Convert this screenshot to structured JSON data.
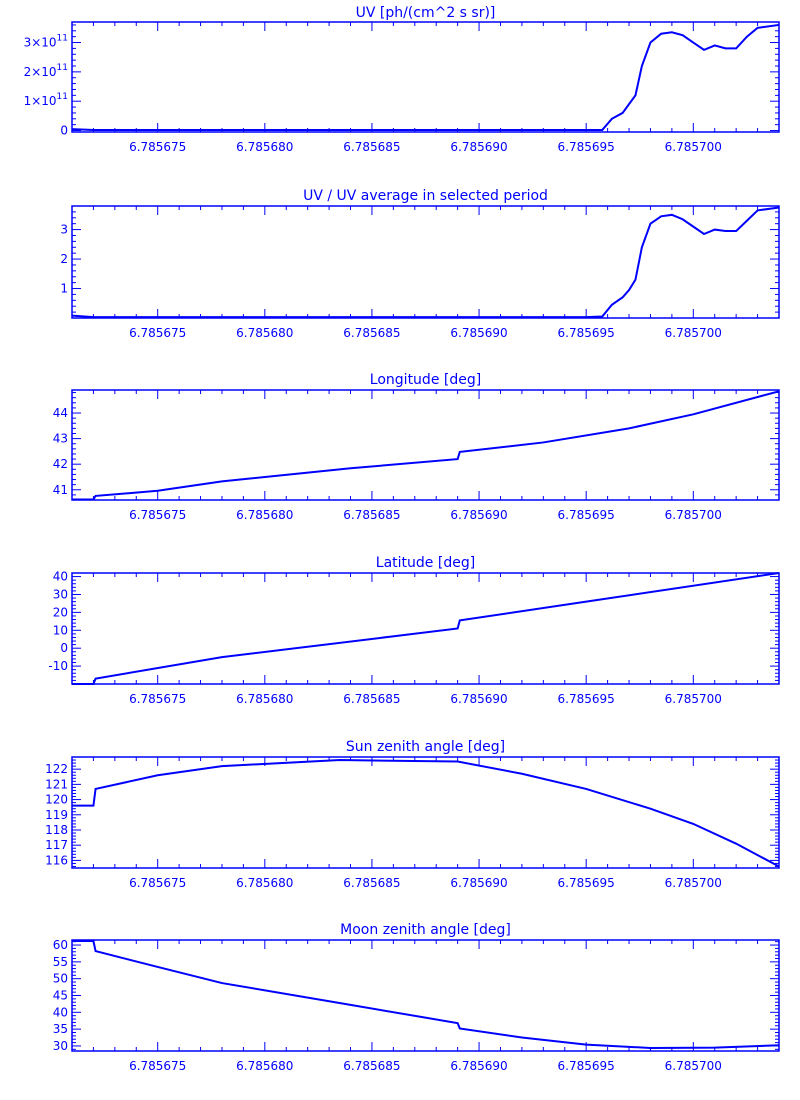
{
  "chart_data": [
    {
      "type": "line",
      "title": "UV [ph/(cm^2 s sr)]",
      "xlim": [
        6.785671,
        6.785704
      ],
      "ylim": [
        -5000000000.0,
        370000000000.0
      ],
      "xticks": [
        6.785675,
        6.78568,
        6.785685,
        6.78569,
        6.785695,
        6.7857
      ],
      "xtick_labels": [
        "6.785675",
        "6.785680",
        "6.785685",
        "6.785690",
        "6.785695",
        "6.785700"
      ],
      "yticks": [
        0,
        100000000000.0,
        200000000000.0,
        300000000000.0
      ],
      "ytick_labels": [
        {
          "base": "0",
          "exp": ""
        },
        {
          "base": "1×10",
          "exp": "11"
        },
        {
          "base": "2×10",
          "exp": "11"
        },
        {
          "base": "3×10",
          "exp": "11"
        }
      ],
      "series": [
        {
          "x": [
            6.785671,
            6.785672,
            6.785695,
            6.78569575,
            6.7856962,
            6.7856967,
            6.785697,
            6.7856973,
            6.7856976,
            6.785698,
            6.7856985,
            6.785699,
            6.7856995,
            6.7857,
            6.7857005,
            6.785701,
            6.7857015,
            6.785702,
            6.7857025,
            6.785703,
            6.785704
          ],
          "y": [
            5000000000.0,
            2000000000.0,
            2000000000.0,
            2000000000.0,
            40000000000.0,
            60000000000.0,
            90000000000.0,
            120000000000.0,
            220000000000.0,
            300000000000.0,
            330000000000.0,
            335000000000.0,
            325000000000.0,
            300000000000.0,
            275000000000.0,
            290000000000.0,
            280000000000.0,
            280000000000.0,
            320000000000.0,
            350000000000.0,
            360000000000.0
          ]
        }
      ]
    },
    {
      "type": "line",
      "title": "UV / UV average in selected period",
      "xlim": [
        6.785671,
        6.785704
      ],
      "ylim": [
        0,
        3.8
      ],
      "xticks": [
        6.785675,
        6.78568,
        6.785685,
        6.78569,
        6.785695,
        6.7857
      ],
      "xtick_labels": [
        "6.785675",
        "6.785680",
        "6.785685",
        "6.785690",
        "6.785695",
        "6.785700"
      ],
      "yticks": [
        1,
        2,
        3
      ],
      "ytick_labels": [
        {
          "base": "1",
          "exp": ""
        },
        {
          "base": "2",
          "exp": ""
        },
        {
          "base": "3",
          "exp": ""
        }
      ],
      "series": [
        {
          "x": [
            6.785671,
            6.785672,
            6.785695,
            6.78569575,
            6.7856962,
            6.7856967,
            6.785697,
            6.7856973,
            6.7856976,
            6.785698,
            6.7856985,
            6.785699,
            6.7856995,
            6.7857,
            6.7857005,
            6.785701,
            6.7857015,
            6.785702,
            6.7857025,
            6.785703,
            6.785704
          ],
          "y": [
            0.08,
            0.03,
            0.03,
            0.05,
            0.45,
            0.7,
            0.95,
            1.3,
            2.4,
            3.2,
            3.45,
            3.5,
            3.35,
            3.1,
            2.85,
            3.0,
            2.95,
            2.95,
            3.3,
            3.65,
            3.75
          ]
        }
      ]
    },
    {
      "type": "line",
      "title": "Longitude [deg]",
      "xlim": [
        6.785671,
        6.785704
      ],
      "ylim": [
        40.6,
        44.9
      ],
      "xticks": [
        6.785675,
        6.78568,
        6.785685,
        6.78569,
        6.785695,
        6.7857
      ],
      "xtick_labels": [
        "6.785675",
        "6.785680",
        "6.785685",
        "6.785690",
        "6.785695",
        "6.785700"
      ],
      "yticks": [
        41,
        42,
        43,
        44
      ],
      "ytick_labels": [
        {
          "base": "41",
          "exp": ""
        },
        {
          "base": "42",
          "exp": ""
        },
        {
          "base": "43",
          "exp": ""
        },
        {
          "base": "44",
          "exp": ""
        }
      ],
      "series": [
        {
          "x": [
            6.785671,
            6.785672,
            6.7856721,
            6.785675,
            6.785678,
            6.785684,
            6.785689,
            6.7856891,
            6.785693,
            6.785697,
            6.7857,
            6.785704
          ],
          "y": [
            40.62,
            40.62,
            40.76,
            40.96,
            41.33,
            41.84,
            42.2,
            42.48,
            42.85,
            43.4,
            43.95,
            44.85
          ]
        }
      ]
    },
    {
      "type": "line",
      "title": "Latitude [deg]",
      "xlim": [
        6.785671,
        6.785704
      ],
      "ylim": [
        -20,
        42
      ],
      "xticks": [
        6.785675,
        6.78568,
        6.785685,
        6.78569,
        6.785695,
        6.7857
      ],
      "xtick_labels": [
        "6.785675",
        "6.785680",
        "6.785685",
        "6.785690",
        "6.785695",
        "6.785700"
      ],
      "yticks": [
        -10,
        0,
        10,
        20,
        30,
        40
      ],
      "ytick_labels": [
        {
          "base": "-10",
          "exp": ""
        },
        {
          "base": "0",
          "exp": ""
        },
        {
          "base": "10",
          "exp": ""
        },
        {
          "base": "20",
          "exp": ""
        },
        {
          "base": "30",
          "exp": ""
        },
        {
          "base": "40",
          "exp": ""
        }
      ],
      "series": [
        {
          "x": [
            6.785671,
            6.785672,
            6.7856721,
            6.785678,
            6.785689,
            6.7856891,
            6.785695,
            6.785704
          ],
          "y": [
            -20,
            -20,
            -17,
            -5,
            11,
            15.5,
            26,
            42
          ]
        }
      ]
    },
    {
      "type": "line",
      "title": "Sun zenith angle [deg]",
      "xlim": [
        6.785671,
        6.785704
      ],
      "ylim": [
        115.5,
        122.8
      ],
      "xticks": [
        6.785675,
        6.78568,
        6.785685,
        6.78569,
        6.785695,
        6.7857
      ],
      "xtick_labels": [
        "6.785675",
        "6.785680",
        "6.785685",
        "6.785690",
        "6.785695",
        "6.785700"
      ],
      "yticks": [
        116,
        117,
        118,
        119,
        120,
        121,
        122
      ],
      "ytick_labels": [
        {
          "base": "116",
          "exp": ""
        },
        {
          "base": "117",
          "exp": ""
        },
        {
          "base": "118",
          "exp": ""
        },
        {
          "base": "119",
          "exp": ""
        },
        {
          "base": "120",
          "exp": ""
        },
        {
          "base": "121",
          "exp": ""
        },
        {
          "base": "122",
          "exp": ""
        }
      ],
      "series": [
        {
          "x": [
            6.785671,
            6.785672,
            6.7856721,
            6.785675,
            6.785678,
            6.7856835,
            6.785689,
            6.785692,
            6.785695,
            6.785698,
            6.7857,
            6.785702,
            6.785704
          ],
          "y": [
            119.6,
            119.6,
            120.7,
            121.6,
            122.2,
            122.6,
            122.5,
            121.7,
            120.7,
            119.4,
            118.4,
            117.1,
            115.6
          ]
        }
      ]
    },
    {
      "type": "line",
      "title": "Moon zenith angle [deg]",
      "xlim": [
        6.785671,
        6.785704
      ],
      "ylim": [
        28.5,
        61.5
      ],
      "xticks": [
        6.785675,
        6.78568,
        6.785685,
        6.78569,
        6.785695,
        6.7857
      ],
      "xtick_labels": [
        "6.785675",
        "6.785680",
        "6.785685",
        "6.785690",
        "6.785695",
        "6.785700"
      ],
      "yticks": [
        30,
        35,
        40,
        45,
        50,
        55,
        60
      ],
      "ytick_labels": [
        {
          "base": "30",
          "exp": ""
        },
        {
          "base": "35",
          "exp": ""
        },
        {
          "base": "40",
          "exp": ""
        },
        {
          "base": "45",
          "exp": ""
        },
        {
          "base": "50",
          "exp": ""
        },
        {
          "base": "55",
          "exp": ""
        },
        {
          "base": "60",
          "exp": ""
        }
      ],
      "series": [
        {
          "x": [
            6.785671,
            6.785672,
            6.7856721,
            6.785675,
            6.785678,
            6.785684,
            6.785689,
            6.7856891,
            6.785692,
            6.785695,
            6.785698,
            6.785701,
            6.785704
          ],
          "y": [
            61.2,
            61.2,
            58.2,
            53.5,
            48.7,
            42.2,
            36.8,
            35.2,
            32.5,
            30.4,
            29.4,
            29.5,
            30.2
          ]
        }
      ]
    }
  ]
}
